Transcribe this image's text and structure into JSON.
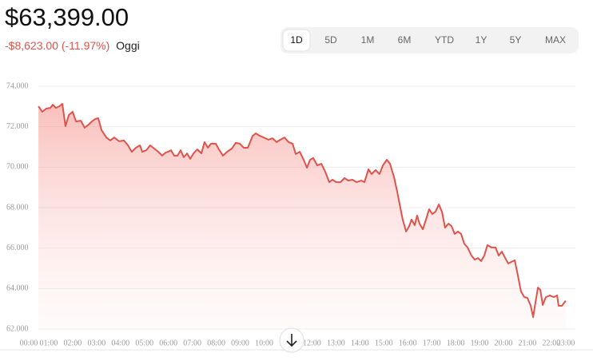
{
  "header": {
    "price": "$63,399.00",
    "change": "-$8,623.00 (-11.97%)",
    "period": "Oggi"
  },
  "range_buttons": [
    "1D",
    "5D",
    "1M",
    "6M",
    "YTD",
    "1Y",
    "5Y",
    "MAX"
  ],
  "chart_data": {
    "type": "line",
    "color": "#e0524a",
    "grid": true,
    "xlim": [
      0,
      23
    ],
    "ylim": [
      62000,
      74000
    ],
    "yticks": [
      {
        "value": 62000,
        "label": "62.000"
      },
      {
        "value": 64000,
        "label": "64.000"
      },
      {
        "value": 66000,
        "label": "66.000"
      },
      {
        "value": 68000,
        "label": "68.000"
      },
      {
        "value": 70000,
        "label": "70.000"
      },
      {
        "value": 72000,
        "label": "72.000"
      },
      {
        "value": 74000,
        "label": "74.000"
      }
    ],
    "xticks": [
      {
        "value": 0,
        "label": "00:00"
      },
      {
        "value": 1,
        "label": "01:00"
      },
      {
        "value": 2,
        "label": "02:00"
      },
      {
        "value": 3,
        "label": "03:00"
      },
      {
        "value": 4,
        "label": "04:00"
      },
      {
        "value": 5,
        "label": "05:00"
      },
      {
        "value": 6,
        "label": "06:00"
      },
      {
        "value": 7,
        "label": "07:00"
      },
      {
        "value": 8,
        "label": "08:00"
      },
      {
        "value": 9,
        "label": "09:00"
      },
      {
        "value": 10,
        "label": "10:00"
      },
      {
        "value": 11,
        "label": "11:00"
      },
      {
        "value": 12,
        "label": "12:00"
      },
      {
        "value": 13,
        "label": "13:00"
      },
      {
        "value": 14,
        "label": "14:00"
      },
      {
        "value": 15,
        "label": "15:00"
      },
      {
        "value": 16,
        "label": "16:00"
      },
      {
        "value": 17,
        "label": "17:00"
      },
      {
        "value": 18,
        "label": "18:00"
      },
      {
        "value": 19,
        "label": "19:00"
      },
      {
        "value": 20,
        "label": "20:00"
      },
      {
        "value": 21,
        "label": "21:00"
      },
      {
        "value": 22,
        "label": "22:00"
      },
      {
        "value": 23,
        "label": "23:00"
      }
    ],
    "x": [
      0.57,
      0.73,
      0.9,
      1.07,
      1.17,
      1.3,
      1.44,
      1.57,
      1.7,
      1.84,
      2.0,
      2.14,
      2.34,
      2.5,
      2.67,
      2.8,
      2.94,
      3.07,
      3.21,
      3.41,
      3.57,
      3.74,
      3.94,
      4.14,
      4.31,
      4.47,
      4.64,
      4.81,
      4.91,
      5.08,
      5.24,
      5.41,
      5.58,
      5.74,
      5.88,
      5.98,
      6.11,
      6.24,
      6.38,
      6.51,
      6.64,
      6.78,
      6.91,
      7.05,
      7.21,
      7.38,
      7.51,
      7.65,
      7.78,
      7.98,
      8.11,
      8.28,
      8.45,
      8.65,
      8.81,
      8.98,
      9.15,
      9.32,
      9.52,
      9.65,
      9.82,
      9.98,
      10.18,
      10.35,
      10.52,
      10.68,
      10.85,
      11.02,
      11.19,
      11.32,
      11.49,
      11.65,
      11.79,
      11.92,
      12.05,
      12.22,
      12.39,
      12.55,
      12.72,
      12.85,
      13.02,
      13.19,
      13.36,
      13.52,
      13.69,
      13.86,
      14.06,
      14.19,
      14.36,
      14.49,
      14.66,
      14.82,
      14.96,
      15.13,
      15.26,
      15.43,
      15.56,
      15.69,
      15.79,
      15.93,
      16.06,
      16.16,
      16.29,
      16.39,
      16.49,
      16.63,
      16.76,
      16.89,
      17.03,
      17.16,
      17.3,
      17.43,
      17.56,
      17.7,
      17.83,
      17.96,
      18.1,
      18.23,
      18.36,
      18.5,
      18.66,
      18.8,
      18.93,
      19.07,
      19.2,
      19.33,
      19.5,
      19.67,
      19.8,
      19.93,
      20.07,
      20.2,
      20.33,
      20.47,
      20.6,
      20.73,
      20.87,
      21.0,
      21.14,
      21.24,
      21.34,
      21.44,
      21.54,
      21.64,
      21.77,
      21.94,
      22.1,
      22.24,
      22.3,
      22.44,
      22.6
    ],
    "values": [
      73010,
      72740,
      72900,
      72930,
      73090,
      72930,
      73010,
      73130,
      72030,
      72580,
      72740,
      72260,
      72300,
      71950,
      72110,
      72260,
      72380,
      72420,
      71830,
      71470,
      71320,
      71470,
      71280,
      71320,
      71080,
      70760,
      70960,
      71080,
      70760,
      70840,
      71080,
      70920,
      70760,
      70570,
      70720,
      70760,
      70840,
      70570,
      70570,
      70840,
      70490,
      70680,
      70410,
      70680,
      70880,
      70680,
      71240,
      70960,
      71160,
      71160,
      70880,
      70570,
      70760,
      70920,
      71200,
      71160,
      70960,
      70960,
      71550,
      71670,
      71550,
      71470,
      71360,
      71430,
      71240,
      71360,
      71470,
      71240,
      71160,
      70650,
      70760,
      70370,
      69970,
      70370,
      70450,
      70090,
      70170,
      69780,
      69260,
      69380,
      69260,
      69260,
      69460,
      69340,
      69380,
      69260,
      69340,
      69260,
      69900,
      69660,
      69860,
      69660,
      70090,
      70370,
      70170,
      69500,
      68790,
      68000,
      67410,
      66820,
      67090,
      67410,
      67130,
      67610,
      67210,
      66930,
      67410,
      67920,
      67690,
      67800,
      68160,
      67800,
      67010,
      67210,
      67090,
      66700,
      66820,
      66700,
      66220,
      66030,
      65630,
      65430,
      65510,
      65360,
      65630,
      66150,
      66030,
      66030,
      65630,
      65830,
      65510,
      65240,
      65320,
      65400,
      64650,
      63860,
      63580,
      63540,
      63150,
      62590,
      63340,
      64050,
      63940,
      63190,
      63580,
      63660,
      63580,
      63660,
      63150,
      63150,
      63400
    ]
  }
}
